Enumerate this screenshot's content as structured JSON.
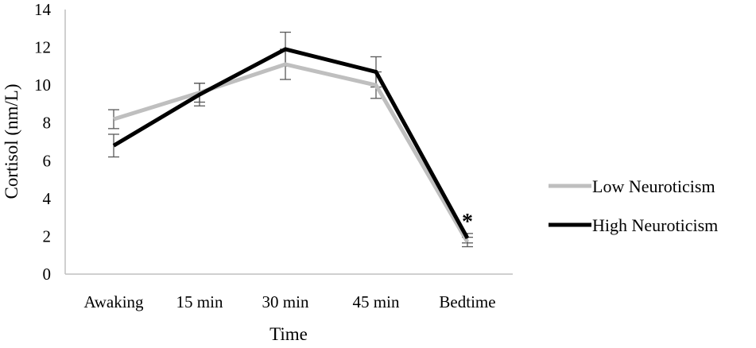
{
  "chart_data": {
    "type": "line",
    "title": "",
    "xlabel": "Time",
    "ylabel": "Cortisol (nm/L)",
    "categories": [
      "Awaking",
      "15 min",
      "30 min",
      "45 min",
      "Bedtime"
    ],
    "ylim": [
      0,
      14
    ],
    "yticks": [
      0,
      2,
      4,
      6,
      8,
      10,
      12,
      14
    ],
    "yticks_text": [
      "0",
      "2",
      "4",
      "6",
      "8",
      "10",
      "12",
      "14"
    ],
    "grid": false,
    "legend_position": "right",
    "series": [
      {
        "name": "Low Neuroticism",
        "color": "#bfbfbf",
        "values": [
          8.2,
          9.6,
          11.1,
          10.0,
          1.7
        ],
        "error": [
          0.5,
          0.5,
          0.8,
          0.7,
          0.25
        ]
      },
      {
        "name": "High Neuroticism",
        "color": "#000000",
        "values": [
          6.8,
          9.5,
          11.9,
          10.7,
          1.9
        ],
        "error": [
          0.6,
          0.6,
          0.9,
          0.8,
          0.25
        ]
      }
    ],
    "annotations": [
      {
        "text": "*",
        "category": "Bedtime"
      }
    ]
  }
}
